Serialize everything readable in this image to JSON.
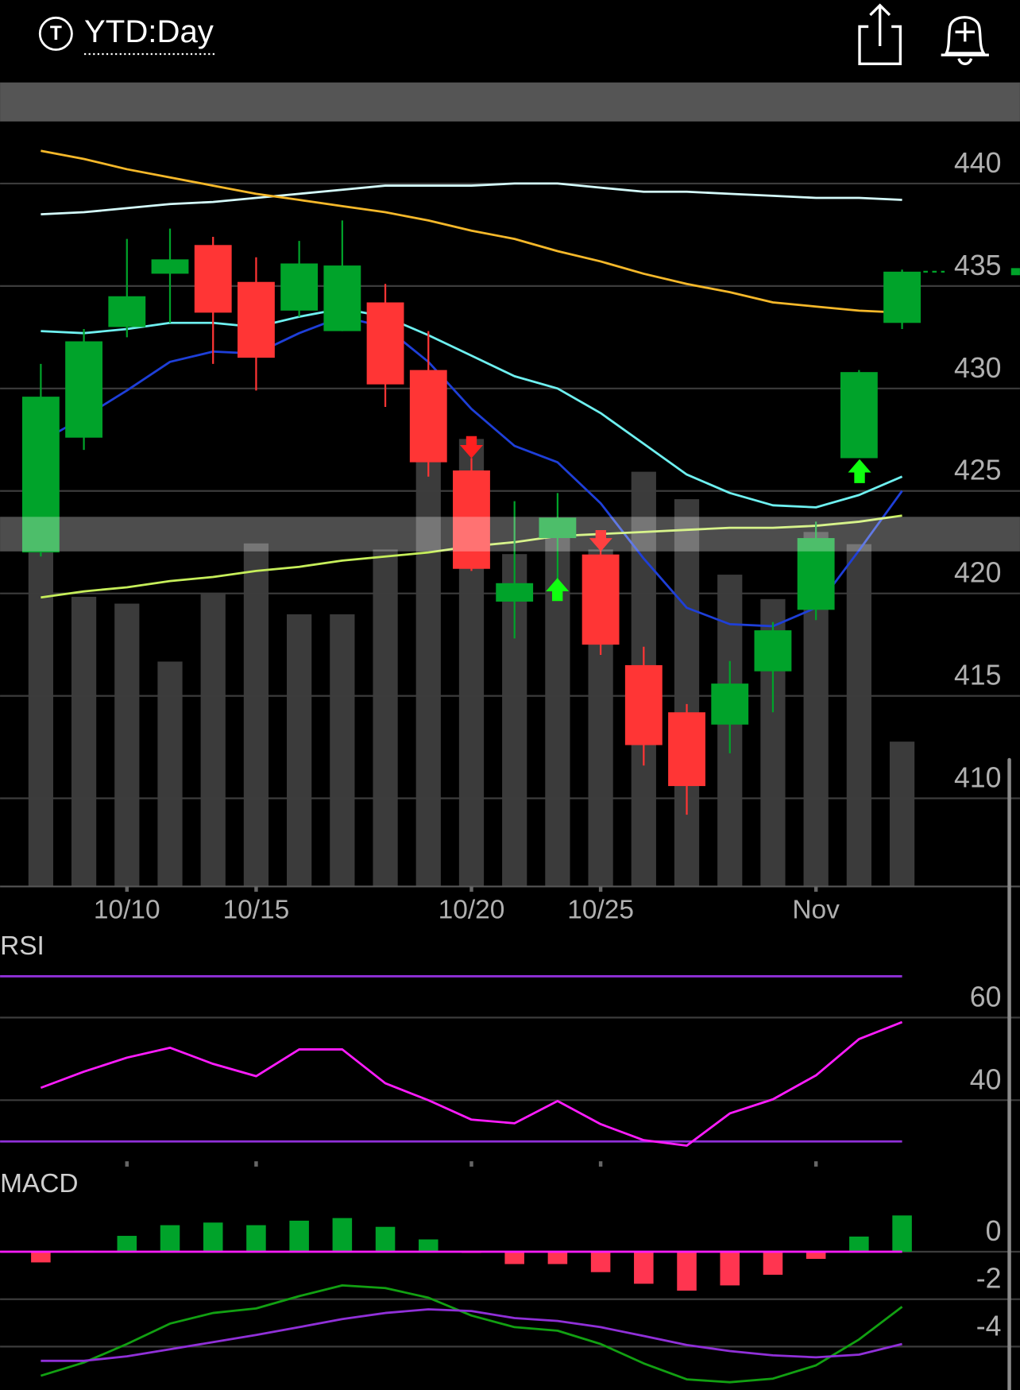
{
  "header": {
    "icon": "T",
    "title": "YTD:Day"
  },
  "chart_data": [
    {
      "type": "candlestick",
      "categories": [
        null,
        null,
        "10/10",
        null,
        null,
        "10/15",
        null,
        null,
        null,
        null,
        "10/20",
        null,
        null,
        "10/25",
        null,
        null,
        null,
        null,
        "Nov",
        null,
        null
      ],
      "open": [
        422.0,
        427.6,
        433.0,
        435.6,
        437.0,
        435.2,
        433.8,
        432.8,
        434.2,
        430.9,
        426.0,
        419.6,
        422.7,
        421.9,
        416.5,
        414.2,
        413.6,
        416.2,
        419.2,
        426.6,
        433.2
      ],
      "high": [
        431.2,
        432.9,
        437.3,
        437.8,
        437.4,
        436.4,
        437.2,
        438.2,
        435.1,
        432.8,
        426.6,
        424.5,
        424.9,
        422.4,
        417.4,
        414.6,
        416.7,
        418.6,
        423.5,
        430.9,
        435.8
      ],
      "low": [
        421.8,
        427.0,
        432.5,
        433.2,
        431.2,
        429.9,
        433.5,
        432.8,
        429.1,
        425.7,
        421.1,
        417.8,
        420.6,
        417.0,
        411.6,
        409.2,
        412.2,
        414.2,
        418.7,
        426.6,
        432.9
      ],
      "close": [
        429.6,
        432.3,
        434.5,
        436.3,
        433.7,
        431.5,
        436.1,
        436.0,
        430.2,
        426.4,
        421.2,
        420.5,
        423.7,
        417.5,
        412.6,
        410.6,
        415.6,
        418.2,
        422.7,
        430.8,
        435.7
      ],
      "up_color": "#00a32a",
      "down_color": "#ff3535",
      "lines": [
        {
          "color": "#d4fbfb",
          "values": [
            438.5,
            438.6,
            438.8,
            439.0,
            439.1,
            439.3,
            439.5,
            439.7,
            439.9,
            439.9,
            439.9,
            440.0,
            440.0,
            439.8,
            439.6,
            439.6,
            439.5,
            439.4,
            439.3,
            439.3,
            439.2
          ]
        },
        {
          "color": "#f5b82a",
          "values": [
            441.6,
            441.2,
            440.7,
            440.3,
            439.9,
            439.5,
            439.2,
            438.9,
            438.6,
            438.2,
            437.7,
            437.3,
            436.7,
            436.2,
            435.6,
            435.1,
            434.7,
            434.2,
            434.0,
            433.8,
            433.7
          ]
        },
        {
          "color": "#6ef0f0",
          "values": [
            432.8,
            432.7,
            432.9,
            433.2,
            433.2,
            433.0,
            433.5,
            433.9,
            433.5,
            432.6,
            431.6,
            430.6,
            430.0,
            428.8,
            427.3,
            425.8,
            424.9,
            424.3,
            424.2,
            424.8,
            425.7
          ]
        },
        {
          "color": "#1e3fd8",
          "values": [
            427.4,
            428.6,
            429.9,
            431.3,
            431.8,
            431.7,
            432.7,
            433.5,
            433.0,
            431.3,
            429.0,
            427.2,
            426.4,
            424.4,
            421.7,
            419.3,
            418.5,
            418.4,
            419.3,
            422.1,
            425.0
          ]
        },
        {
          "color": "#c6ee5a",
          "values": [
            419.8,
            420.1,
            420.3,
            420.6,
            420.8,
            421.1,
            421.3,
            421.6,
            421.8,
            422.0,
            422.3,
            422.5,
            422.8,
            422.9,
            423.0,
            423.1,
            423.2,
            423.2,
            423.3,
            423.5,
            423.8
          ]
        }
      ],
      "volume": [
        47.7,
        38.0,
        37.1,
        29.5,
        38.5,
        45.0,
        35.7,
        35.7,
        44.2,
        55.8,
        58.7,
        43.6,
        45.8,
        44.2,
        54.4,
        50.8,
        40.9,
        37.7,
        46.5,
        44.9,
        19.0
      ],
      "volume_color": "#3b3b3b",
      "ylim": [
        405.7,
        442.9
      ],
      "yticks": [
        410,
        415,
        420,
        425,
        430,
        435,
        440
      ],
      "y2lim": [
        0,
        100
      ],
      "grid": true
    },
    {
      "type": "line",
      "title": "RSI",
      "series": [
        {
          "color": "#ff1cff",
          "values": [
            43.0,
            46.9,
            50.3,
            52.7,
            48.8,
            45.8,
            52.3,
            52.3,
            44.1,
            40.0,
            35.3,
            34.4,
            39.8,
            34.2,
            30.3,
            29.0,
            36.8,
            40.2,
            46.0,
            54.8,
            58.9
          ]
        }
      ],
      "bands": [
        70,
        30
      ],
      "band_color": "#9030d8",
      "ylim": [
        25.2,
        73.5
      ],
      "yticks": [
        40,
        60
      ],
      "grid": true
    },
    {
      "type": "bar",
      "title": "MACD",
      "values": [
        -0.45,
        0.05,
        0.67,
        1.12,
        1.23,
        1.12,
        1.31,
        1.42,
        1.05,
        0.52,
        -0.05,
        -0.52,
        -0.52,
        -0.86,
        -1.35,
        -1.64,
        -1.42,
        -0.97,
        -0.3,
        0.64,
        1.53
      ],
      "pos_color": "#00a32a",
      "neg_color": "#ff3550",
      "zero_line_color": "#ff1cff",
      "lines": [
        {
          "color": "#12a012",
          "values": [
            -5.23,
            -4.67,
            -3.89,
            -3.03,
            -2.58,
            -2.39,
            -1.87,
            -1.42,
            -1.53,
            -1.94,
            -2.69,
            -3.18,
            -3.33,
            -3.89,
            -4.71,
            -5.38,
            -5.5,
            -5.35,
            -4.79,
            -3.7,
            -2.32
          ]
        },
        {
          "color": "#9030d8",
          "values": [
            -4.6,
            -4.6,
            -4.41,
            -4.11,
            -3.81,
            -3.51,
            -3.18,
            -2.84,
            -2.58,
            -2.43,
            -2.5,
            -2.8,
            -2.92,
            -3.18,
            -3.55,
            -3.93,
            -4.19,
            -4.37,
            -4.45,
            -4.34,
            -3.89
          ]
        }
      ],
      "ylim": [
        -5.83,
        3.44
      ],
      "yticks": [
        0,
        -2,
        -4
      ],
      "grid": true
    }
  ]
}
